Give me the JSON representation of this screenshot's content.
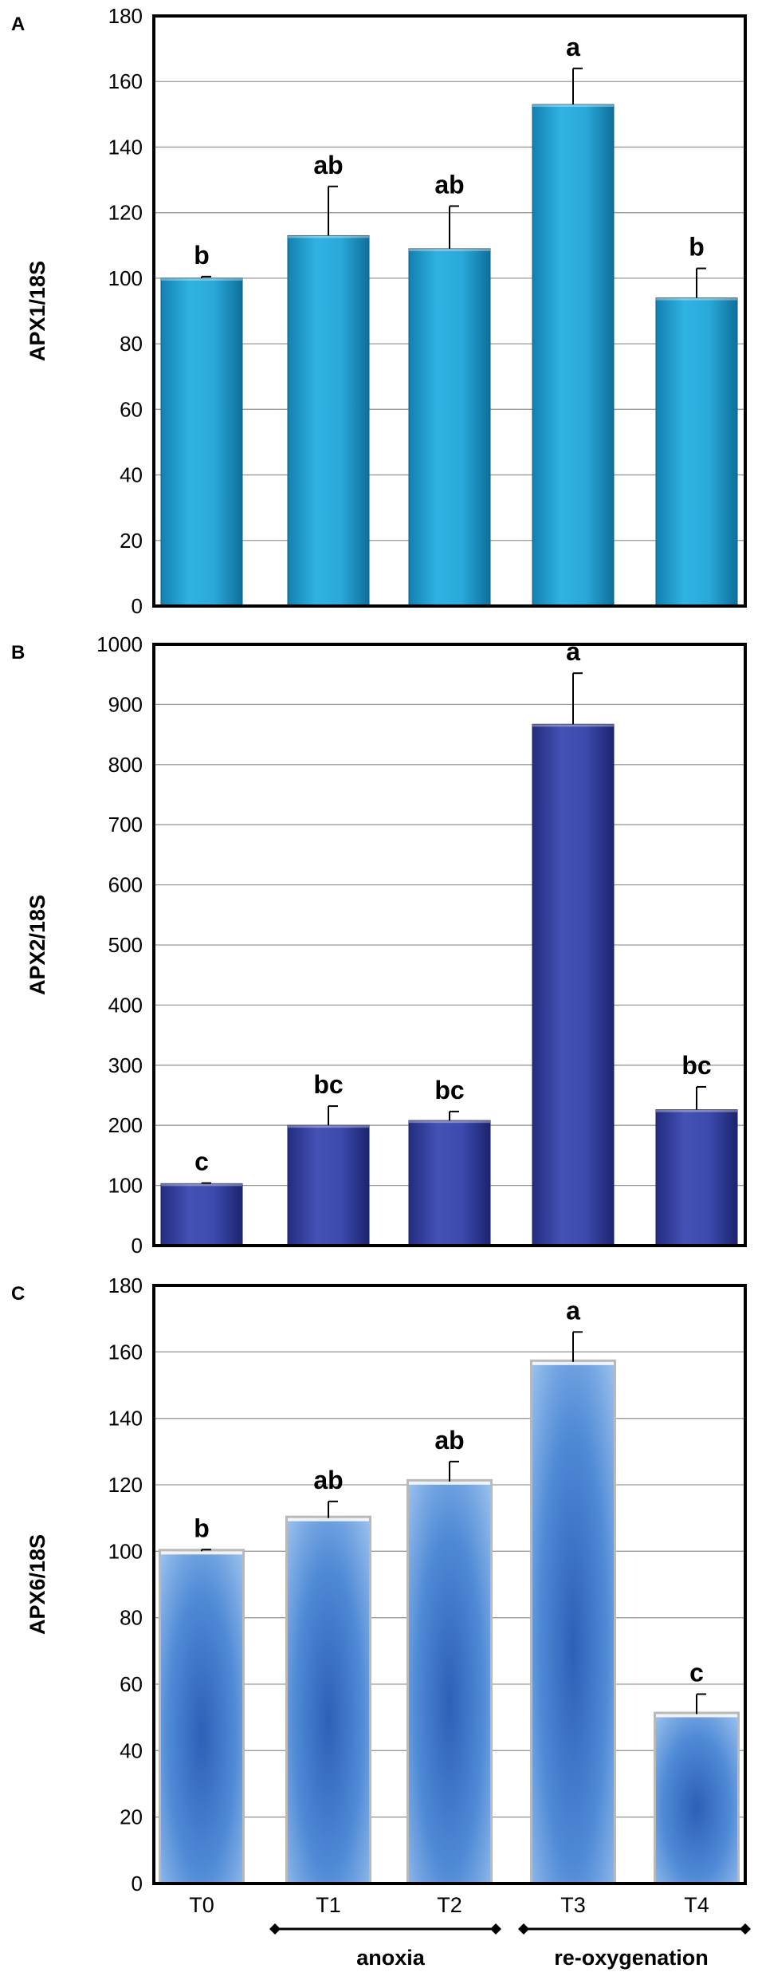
{
  "chart_data": [
    {
      "type": "bar",
      "panel_label": "A",
      "ylabel": "APX1/18S",
      "ylim": [
        0,
        180
      ],
      "yticks": [
        "0",
        "20",
        "40",
        "60",
        "80",
        "100",
        "120",
        "140",
        "160",
        "180"
      ],
      "categories": [
        "T0",
        "T1",
        "T2",
        "T3",
        "T4"
      ],
      "values": [
        100,
        113,
        109,
        153,
        94
      ],
      "errors": [
        0.5,
        15,
        13,
        11,
        9
      ],
      "significance": [
        "b",
        "ab",
        "ab",
        "a",
        "b"
      ],
      "grid": true,
      "bar_color": "#1b9fd1"
    },
    {
      "type": "bar",
      "panel_label": "B",
      "ylabel": "APX2/18S",
      "ylim": [
        0,
        1000
      ],
      "yticks": [
        "0",
        "100",
        "200",
        "300",
        "400",
        "500",
        "600",
        "700",
        "800",
        "900",
        "1000"
      ],
      "categories": [
        "T0",
        "T1",
        "T2",
        "T3",
        "T4"
      ],
      "values": [
        103,
        200,
        208,
        867,
        226
      ],
      "errors": [
        1,
        32,
        15,
        85,
        38
      ],
      "significance": [
        "c",
        "bc",
        "bc",
        "a",
        "bc"
      ],
      "grid": true,
      "bar_color": "#3340a0"
    },
    {
      "type": "bar",
      "panel_label": "C",
      "ylabel": "APX6/18S",
      "ylim": [
        0,
        180
      ],
      "yticks": [
        "0",
        "20",
        "40",
        "60",
        "80",
        "100",
        "120",
        "140",
        "160",
        "180"
      ],
      "categories": [
        "T0",
        "T1",
        "T2",
        "T3",
        "T4"
      ],
      "values": [
        100,
        110,
        121,
        157,
        51
      ],
      "errors": [
        0.5,
        5,
        6,
        9,
        6
      ],
      "significance": [
        "b",
        "ab",
        "ab",
        "a",
        "c"
      ],
      "grid": true,
      "bar_color": "#4a86d8"
    }
  ],
  "xaxis": {
    "tick_labels": [
      "T0",
      "T1",
      "T2",
      "T3",
      "T4"
    ],
    "groups": [
      {
        "label": "anoxia"
      },
      {
        "label": "re-oxygenation"
      }
    ]
  }
}
